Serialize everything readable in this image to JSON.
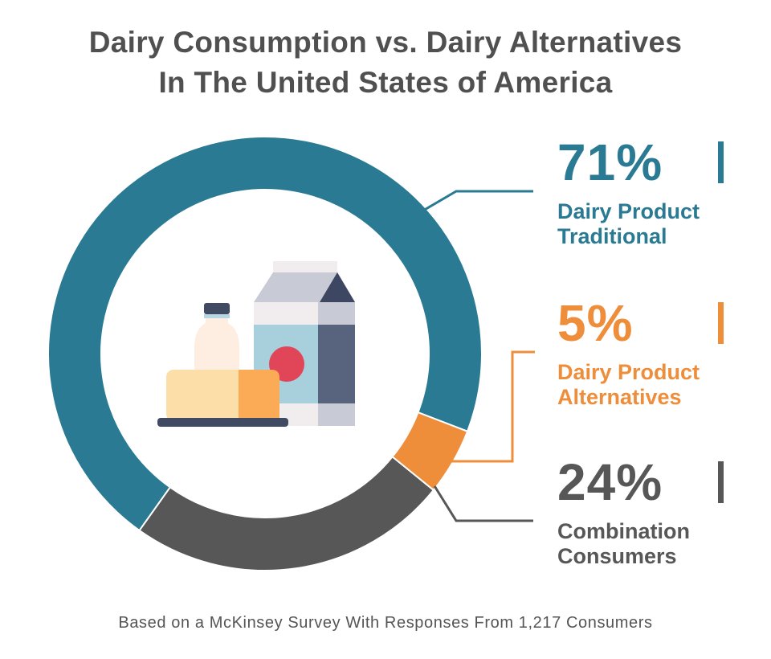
{
  "header": {
    "title_line1": "Dairy Consumption vs. Dairy Alternatives",
    "title_line2": "In The United States of America"
  },
  "chart_data": {
    "type": "pie",
    "variant": "donut",
    "categories": [
      "Dairy Product Traditional",
      "Dairy Product Alternatives",
      "Combination Consumers"
    ],
    "values": [
      71,
      5,
      24
    ],
    "unit": "%",
    "colors": [
      "#2a7a93",
      "#ee8d3a",
      "#575757"
    ],
    "center_illustration": "dairy-products-icon"
  },
  "stats": [
    {
      "pct": "71%",
      "label_line1": "Dairy Product",
      "label_line2": "Traditional",
      "color": "#2a7a93"
    },
    {
      "pct": "5%",
      "label_line1": "Dairy Product",
      "label_line2": "Alternatives",
      "color": "#ee8d3a"
    },
    {
      "pct": "24%",
      "label_line1": "Combination",
      "label_line2": "Consumers",
      "color": "#575757"
    }
  ],
  "footer": {
    "source": "Based on a McKinsey Survey With Responses From 1,217 Consumers"
  }
}
